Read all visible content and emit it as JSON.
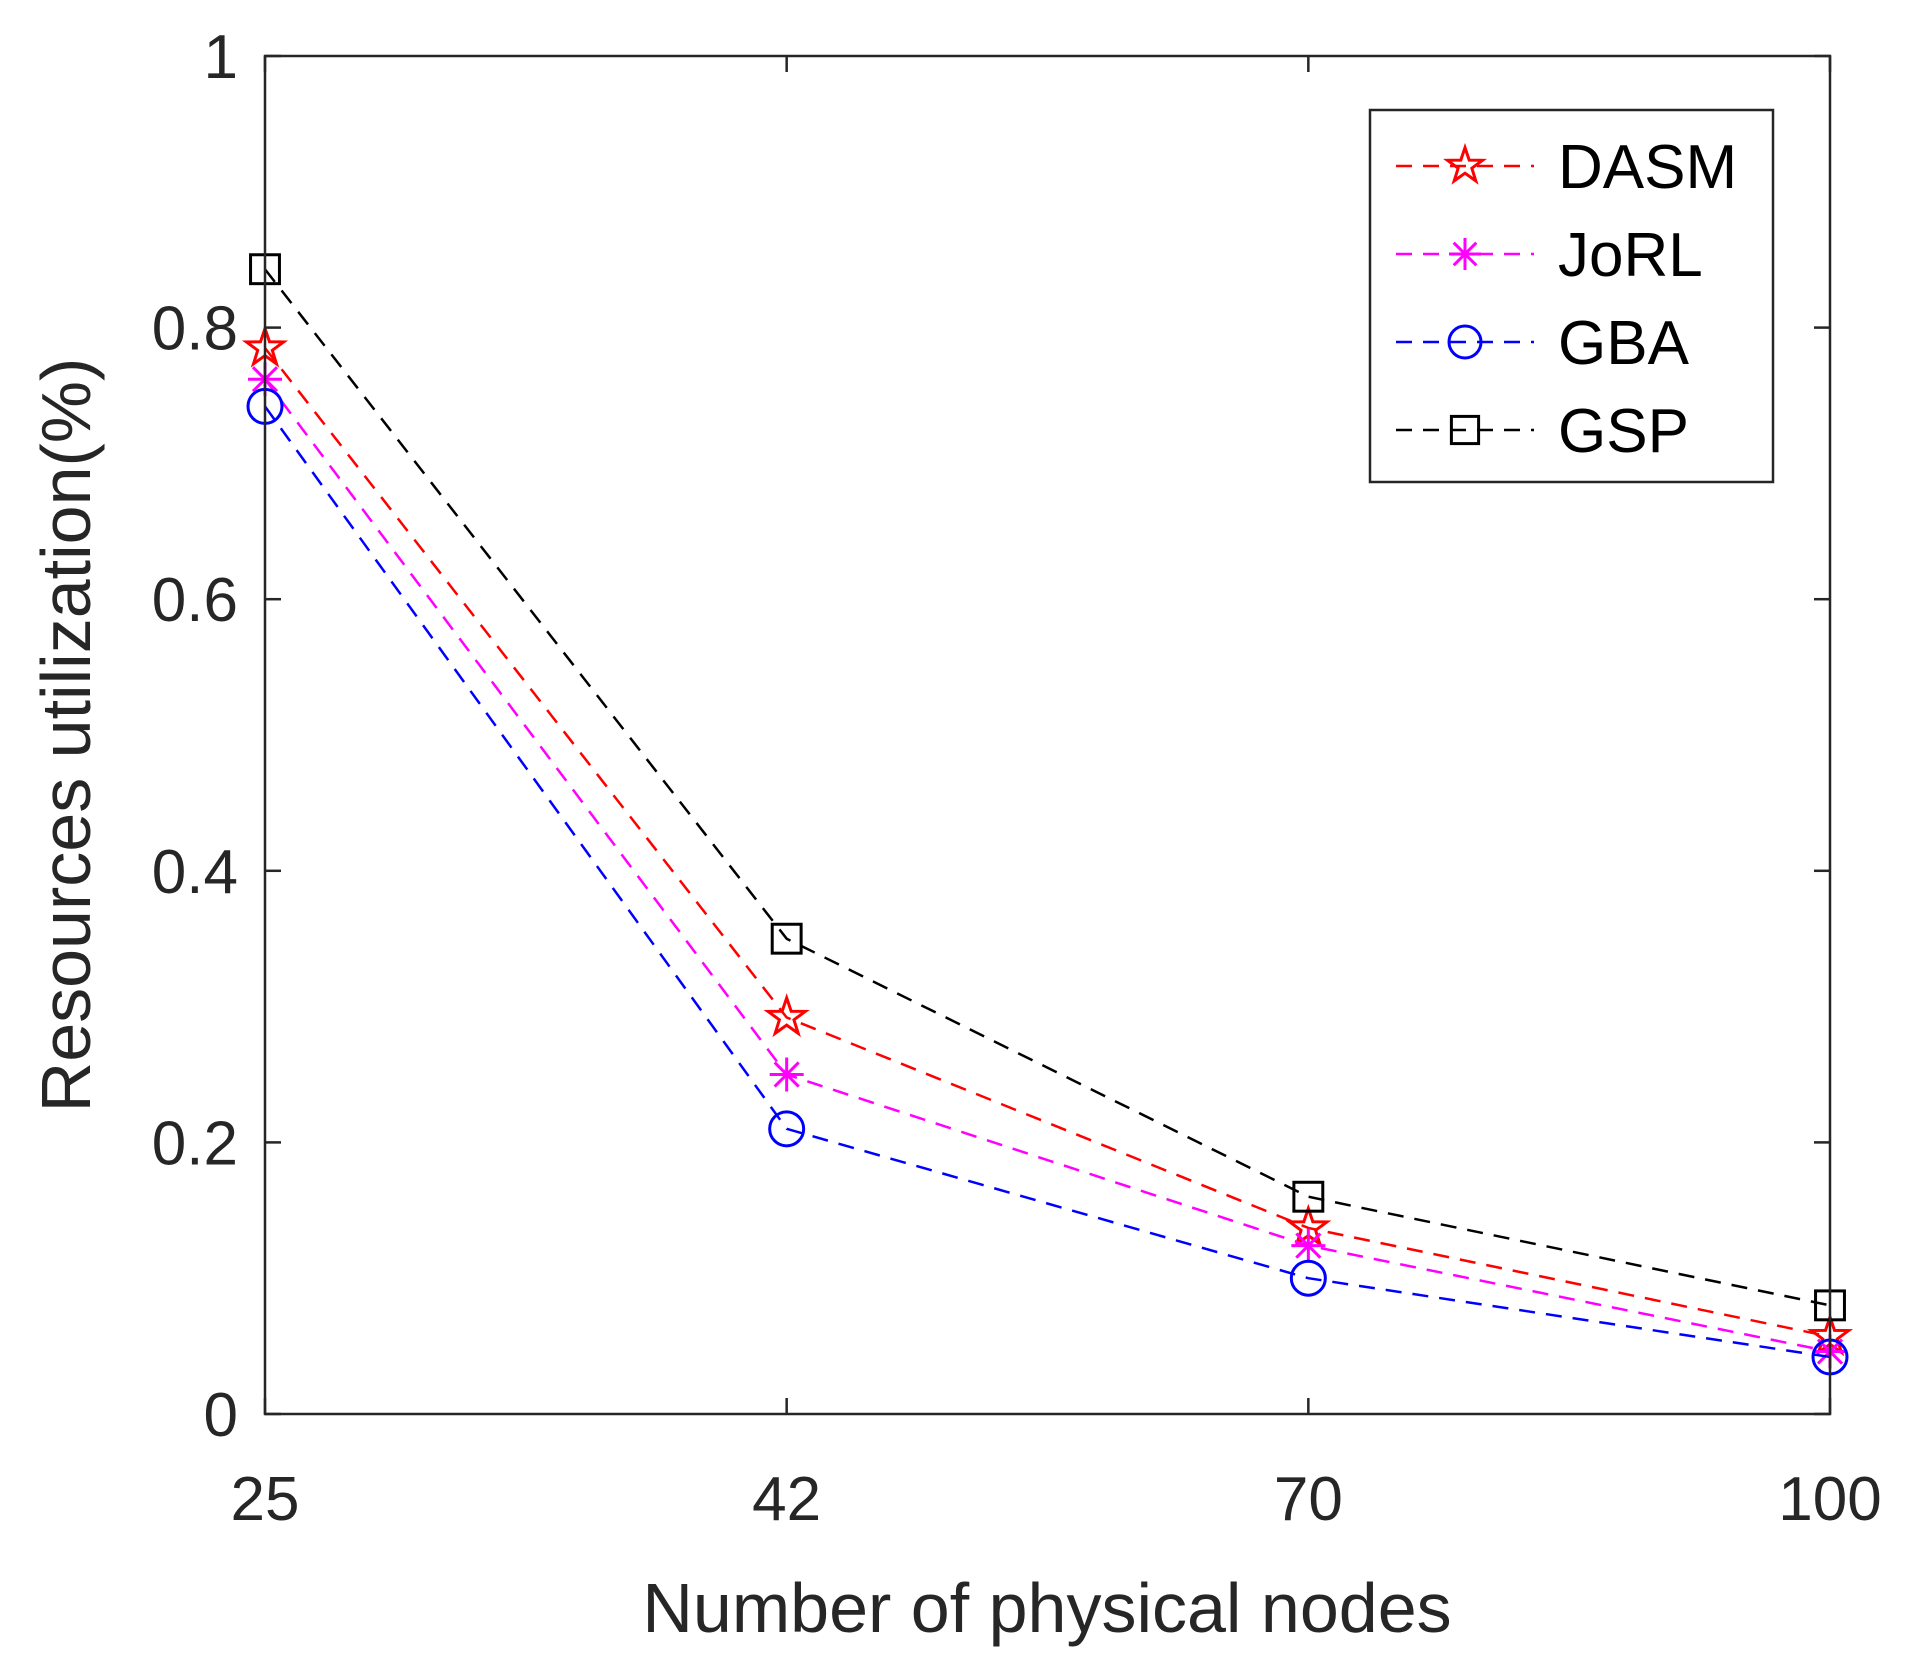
{
  "chart_data": {
    "type": "line",
    "title": "",
    "xlabel": "Number of physical nodes",
    "ylabel": "Resources utilization(%)",
    "categories": [
      "25",
      "42",
      "70",
      "100"
    ],
    "yticks": [
      "0",
      "0.2",
      "0.4",
      "0.6",
      "0.8",
      "1"
    ],
    "ytick_values": [
      0,
      0.2,
      0.4,
      0.6,
      0.8,
      1
    ],
    "ylim": [
      0,
      1
    ],
    "grid": false,
    "legend_position": "top-right",
    "series": [
      {
        "name": "DASM",
        "color": "#ff0000",
        "marker": "pentagram",
        "values": [
          0.785,
          0.292,
          0.137,
          0.057
        ]
      },
      {
        "name": "JoRL",
        "color": "#ff00ff",
        "marker": "asterisk",
        "values": [
          0.762,
          0.25,
          0.124,
          0.046
        ]
      },
      {
        "name": "GBA",
        "color": "#0000ff",
        "marker": "circle",
        "values": [
          0.742,
          0.21,
          0.1,
          0.042
        ]
      },
      {
        "name": "GSP",
        "color": "#000000",
        "marker": "square",
        "values": [
          0.843,
          0.35,
          0.16,
          0.08
        ]
      }
    ]
  }
}
